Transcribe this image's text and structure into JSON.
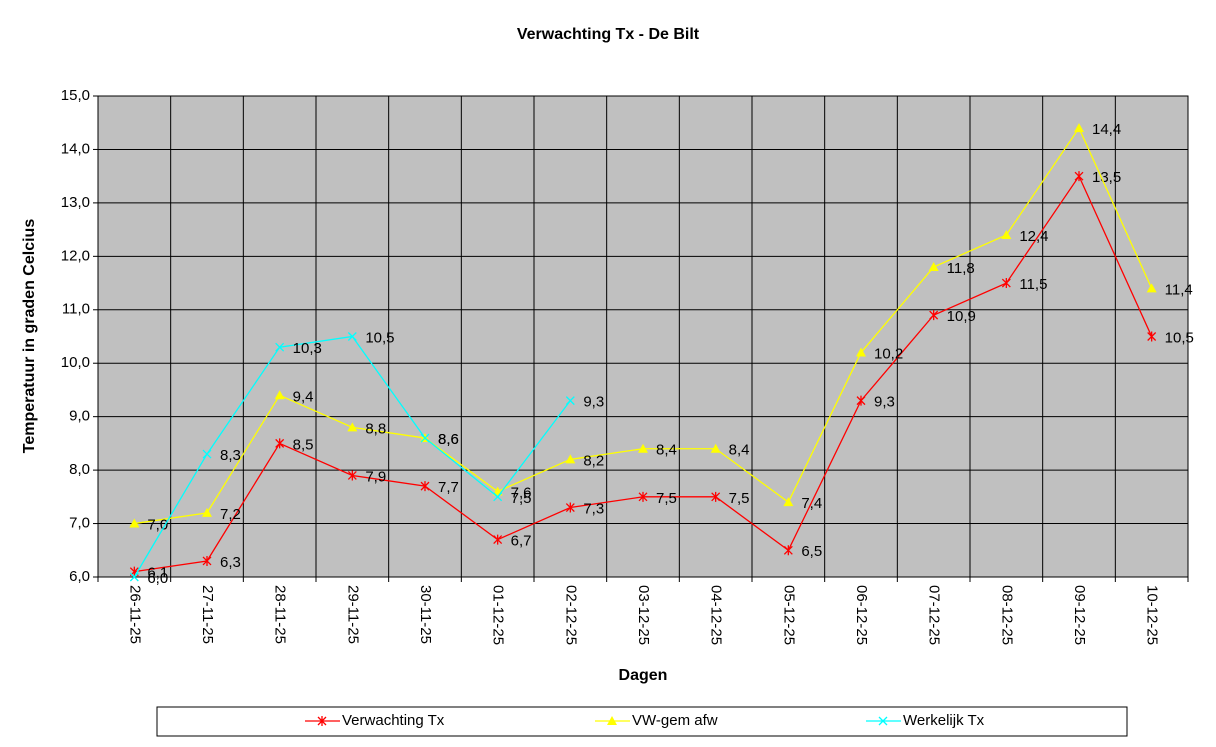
{
  "chart_data": {
    "type": "line",
    "title": "Verwachting Tx - De Bilt",
    "x_label": "Dagen",
    "y_label": "Temperatuur in graden Celcius",
    "categories": [
      "26-11-25",
      "27-11-25",
      "28-11-25",
      "29-11-25",
      "30-11-25",
      "01-12-25",
      "02-12-25",
      "03-12-25",
      "04-12-25",
      "05-12-25",
      "06-12-25",
      "07-12-25",
      "08-12-25",
      "09-12-25",
      "10-12-25"
    ],
    "series": [
      {
        "name": "Verwachting Tx",
        "color": "#ff0000",
        "marker": "star",
        "values": [
          6.1,
          6.3,
          8.5,
          7.9,
          7.7,
          6.7,
          7.3,
          7.5,
          7.5,
          6.5,
          9.3,
          10.9,
          11.5,
          13.5,
          10.5
        ],
        "value_labels": [
          "6,1",
          "6,3",
          "8,5",
          "7,9",
          "7,7",
          "6,7",
          "7,3",
          "7,5",
          "7,5",
          "6,5",
          "9,3",
          "10,9",
          "11,5",
          "13,5",
          "10,5"
        ]
      },
      {
        "name": "VW-gem afw",
        "color": "#ffff00",
        "marker": "triangle",
        "values": [
          7.0,
          7.2,
          9.4,
          8.8,
          8.6,
          7.6,
          8.2,
          8.4,
          8.4,
          7.4,
          10.2,
          11.8,
          12.4,
          14.4,
          11.4
        ],
        "value_labels": [
          "7,0",
          "7,2",
          "9,4",
          "8,8",
          "8,6",
          "7,6",
          "8,2",
          "8,4",
          "8,4",
          "7,4",
          "10,2",
          "11,8",
          "12,4",
          "14,4",
          "11,4"
        ]
      },
      {
        "name": "Werkelijk Tx",
        "color": "#00ffff",
        "marker": "x",
        "values": [
          6.0,
          8.3,
          10.3,
          10.5,
          8.6,
          7.5,
          9.3,
          null,
          null,
          null,
          null,
          null,
          null,
          null,
          null
        ],
        "value_labels": [
          "6,0",
          "8,3",
          "10,3",
          "10,5",
          "8,6",
          "7,5",
          "9,3",
          null,
          null,
          null,
          null,
          null,
          null,
          null,
          null
        ]
      }
    ],
    "ylim": [
      6,
      15
    ],
    "yticks": [
      {
        "value": 6,
        "label": "6,0"
      },
      {
        "value": 7,
        "label": "7,0"
      },
      {
        "value": 8,
        "label": "8,0"
      },
      {
        "value": 9,
        "label": "9,0"
      },
      {
        "value": 10,
        "label": "10,0"
      },
      {
        "value": 11,
        "label": "11,0"
      },
      {
        "value": 12,
        "label": "12,0"
      },
      {
        "value": 13,
        "label": "13,0"
      },
      {
        "value": 14,
        "label": "14,0"
      },
      {
        "value": 15,
        "label": "15,0"
      }
    ],
    "grid": true,
    "legend": "bottom"
  }
}
